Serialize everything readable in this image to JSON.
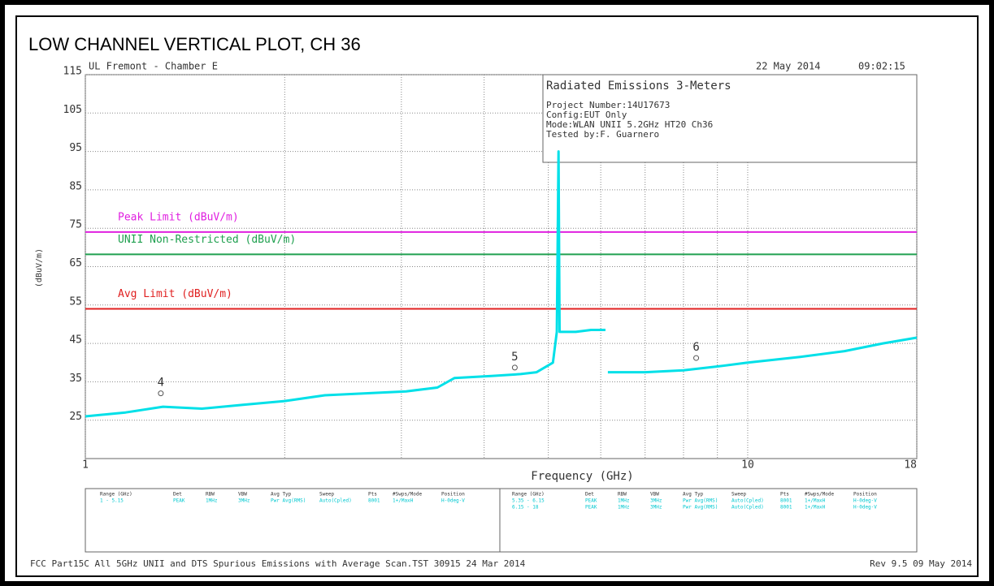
{
  "chart_data": {
    "type": "line",
    "title": "LOW CHANNEL VERTICAL PLOT, CH 36",
    "header_left": "UL Fremont - Chamber E",
    "header_date": "22 May 2014",
    "header_time": "09:02:15",
    "info_box": [
      "Radiated Emissions 3-Meters",
      "Project Number:14U17673",
      "Config:EUT Only",
      "Mode:WLAN UNII 5.2GHz HT20 Ch36",
      "Tested by:F. Guarnero"
    ],
    "x_label": "Frequency (GHz)",
    "y_label": "(dBuV/m)",
    "xlog": true,
    "xlim": [
      1,
      18
    ],
    "xticks": [
      1,
      10,
      18
    ],
    "xgrid": [
      2,
      3,
      4,
      5,
      6,
      7,
      8,
      9
    ],
    "ylim": [
      15,
      115
    ],
    "yticks": [
      25,
      35,
      45,
      55,
      65,
      75,
      85,
      95,
      105,
      115
    ],
    "grid": true,
    "limit_lines": [
      {
        "name": "Peak Limit (dBuV/m)",
        "color": "#e020e0",
        "value": 74
      },
      {
        "name": "UNII Non-Restricted (dBuV/m)",
        "color": "#20a050",
        "value": 68.2
      },
      {
        "name": "Avg Limit (dBuV/m)",
        "color": "#e02020",
        "value": 54
      }
    ],
    "series": [
      {
        "color": "#00e0e8",
        "x": [
          1,
          1.15,
          1.31,
          1.5,
          1.73,
          2.0,
          2.3,
          2.65,
          3.05,
          3.4,
          3.61,
          4.1,
          4.54,
          4.8,
          5.08,
          5.15,
          5.18,
          5.2,
          5.5,
          5.8,
          6.1,
          6.12,
          6.15,
          7.0,
          8.0,
          9.0,
          10,
          12,
          14,
          16,
          18
        ],
        "values": [
          26,
          27,
          28.5,
          28,
          29,
          30,
          31.5,
          32,
          32.5,
          33.5,
          36,
          36.5,
          37,
          37.5,
          40,
          48,
          95,
          48,
          48,
          48.5,
          48.5,
          null,
          37.5,
          37.5,
          38,
          39,
          40,
          41.5,
          43,
          45,
          46.5
        ]
      }
    ],
    "markers": {
      "labels": [
        "4",
        "5",
        "6"
      ],
      "x": [
        1.3,
        4.45,
        8.36
      ],
      "values": [
        32,
        38.7,
        41.2
      ]
    },
    "table": {
      "columns": [
        "Range (GHz)",
        "Det",
        "RBW",
        "VBW",
        "Avg Typ",
        "Sweep",
        "Pts",
        "#Swps/Mode",
        "Position"
      ],
      "left_rows": [
        [
          "1 - 5.15",
          "PEAK",
          "1MHz",
          "3MHz",
          "Pwr Avg(RMS)",
          "Auto(Cpled)",
          "8001",
          "1+/MaxH",
          "H-0deg-V"
        ]
      ],
      "right_rows": [
        [
          "5.35 - 6.15",
          "PEAK",
          "1MHz",
          "3MHz",
          "Pwr Avg(RMS)",
          "Auto(Cpled)",
          "8001",
          "1+/MaxH",
          "H-0deg-V"
        ],
        [
          "6.15 - 18",
          "PEAK",
          "1MHz",
          "3MHz",
          "Pwr Avg(RMS)",
          "Auto(Cpled)",
          "8001",
          "1+/MaxH",
          "H-0deg-V"
        ]
      ]
    },
    "footer_left": "FCC Part15C All 5GHz UNII and DTS Spurious Emissions with Average Scan.TST 30915 24 Mar 2014",
    "footer_right": "Rev 9.5 09 May 2014"
  }
}
